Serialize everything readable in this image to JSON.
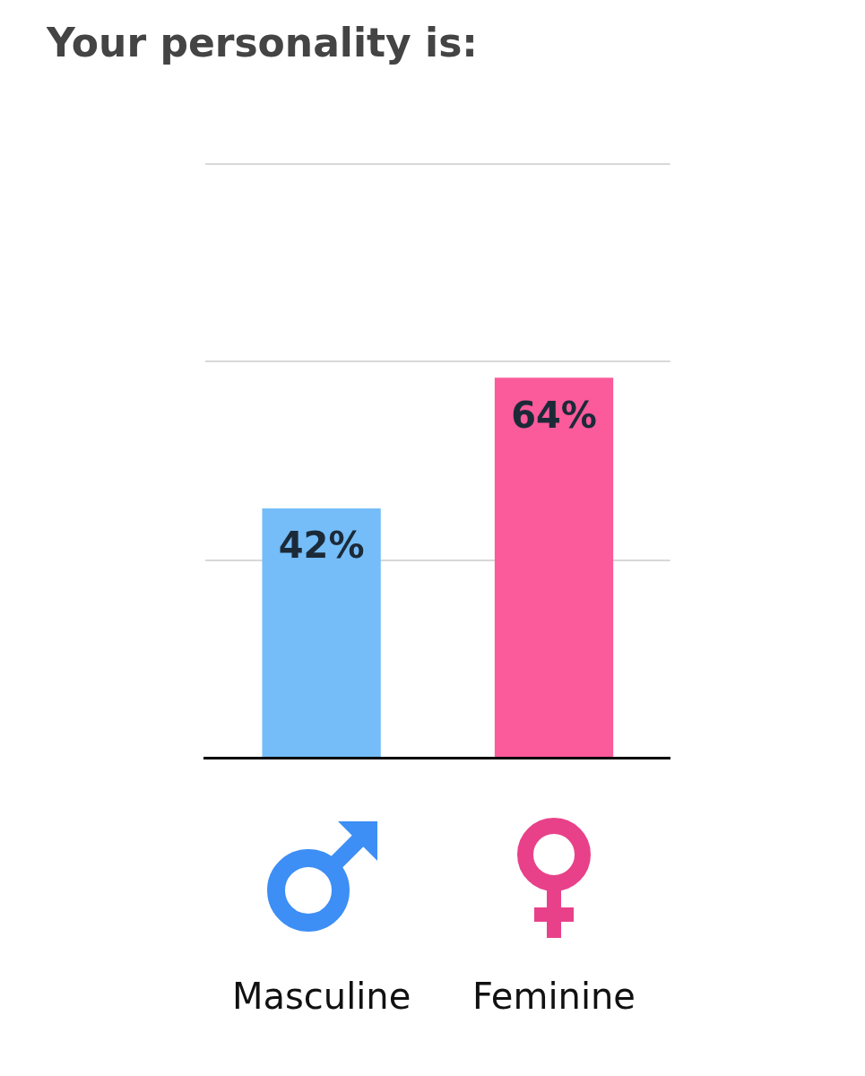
{
  "chart_data": {
    "type": "bar",
    "title": "Your personality is:",
    "categories": [
      "Masculine",
      "Feminine"
    ],
    "values": [
      42,
      64
    ],
    "value_labels": [
      "42%",
      "64%"
    ],
    "colors": [
      "#74bdf8",
      "#fb5a9b"
    ],
    "ylim": [
      0,
      100
    ],
    "yticks": [
      {
        "value": 0,
        "label": null
      },
      {
        "value": 33.3,
        "label": null
      },
      {
        "value": 66.7,
        "label": null
      },
      {
        "value": 100,
        "label": null
      }
    ],
    "grid": "y",
    "legend": false,
    "tick_labels": "x"
  }
}
